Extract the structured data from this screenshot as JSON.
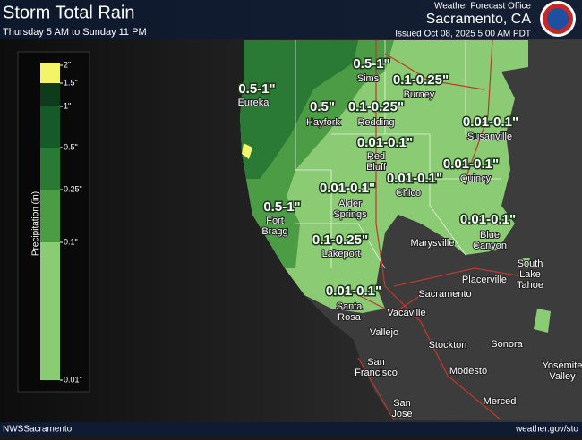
{
  "header": {
    "title": "Storm Total Rain",
    "subtitle": "Thursday 5 AM to Sunday 11 PM",
    "office": "Weather Forecast Office",
    "location": "Sacramento, CA",
    "issued": "Issued Oct 08, 2025 5:00 AM PDT"
  },
  "legend": {
    "title": "Precipitation (in)",
    "items": [
      {
        "label": "2\"",
        "color": "#f4f46a"
      },
      {
        "label": "1.5\"",
        "color": "#0d3b1c"
      },
      {
        "label": "1\"",
        "color": "#175a2a"
      },
      {
        "label": "0.5\"",
        "color": "#2a7a35"
      },
      {
        "label": "0.25\"",
        "color": "#4c9c45"
      },
      {
        "label": "0.1\"",
        "color": "#8acb74"
      },
      {
        "label": "0.01\"",
        "color": "#8acb74"
      }
    ]
  },
  "amounts": [
    "0.5-1\"",
    "0.1-0.25\"",
    "0.5-1\"",
    "0.5\"",
    "0.1-0.25\"",
    "0.01-0.1\"",
    "0.01-0.1\"",
    "0.01-0.1\"",
    "0.01-0.1\"",
    "0.01-0.1\"",
    "0.5-1\"",
    "0.01-0.1\"",
    "0.1-0.25\"",
    "0.01-0.1\""
  ],
  "cities": [
    [
      "Sims"
    ],
    [
      "Burney"
    ],
    [
      "Eureka"
    ],
    [
      "Hayfork"
    ],
    [
      "Redding"
    ],
    [
      "Susanville"
    ],
    [
      "Red",
      "Bluff"
    ],
    [
      "Chico"
    ],
    [
      "Quincy"
    ],
    [
      "Alder",
      "Springs"
    ],
    [
      "Fort",
      "Bragg"
    ],
    [
      "Blue",
      "Canyon"
    ],
    [
      "Marysville"
    ],
    [
      "Lakeport"
    ],
    [
      "South",
      "Lake",
      "Tahoe"
    ],
    [
      "Placerville"
    ],
    [
      "Sacramento"
    ],
    [
      "Santa",
      "Rosa"
    ],
    [
      "Vacaville"
    ],
    [
      "Vallejo"
    ],
    [
      "Stockton"
    ],
    [
      "Sonora"
    ],
    [
      "San",
      "Francisco"
    ],
    [
      "Modesto"
    ],
    [
      "Yosemite",
      "Valley"
    ],
    [
      "Merced"
    ],
    [
      "San",
      "Jose"
    ]
  ],
  "footer": {
    "left": "NWSSacramento",
    "right": "weather.gov/sto"
  }
}
